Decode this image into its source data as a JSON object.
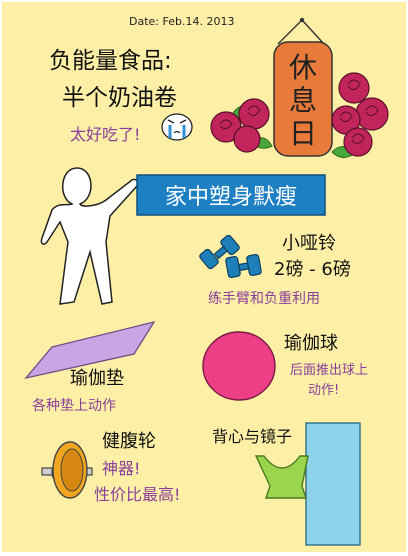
{
  "date": "Date: Feb.14. 2013",
  "note": {
    "line1": "负能量食品:",
    "line2": "半个奶油卷",
    "comment": "太好吃了!"
  },
  "sign": {
    "c1": "休",
    "c2": "息",
    "c3": "日"
  },
  "banner": "家中塑身默瘦",
  "items": {
    "dumbbell": {
      "name": "小哑铃",
      "weight": "2磅 - 6磅",
      "note": "练手臂和负重利用"
    },
    "yoga_mat": {
      "name": "瑜伽垫",
      "note": "各种垫上动作"
    },
    "yoga_ball": {
      "name": "瑜伽球",
      "note1": "后面推出球上",
      "note2": "动作!"
    },
    "ab_wheel": {
      "name": "健腹轮",
      "note1": "神器!",
      "note2": "性价比最高!"
    },
    "bra_mirror": {
      "name": "背心与镜子"
    }
  },
  "colors": {
    "paper": "#fdf0a6",
    "banner": "#1e7fc2",
    "accent_text": "#8a3f9c",
    "sign": "#e87a3a",
    "roses": "#c2255c",
    "dumbbell": "#1f7fb8",
    "mat": "#c9a6e3",
    "ball": "#ec3f86",
    "wheel": "#f2a51f",
    "mirror": "#8fd3ea",
    "bra": "#9bd44d"
  }
}
